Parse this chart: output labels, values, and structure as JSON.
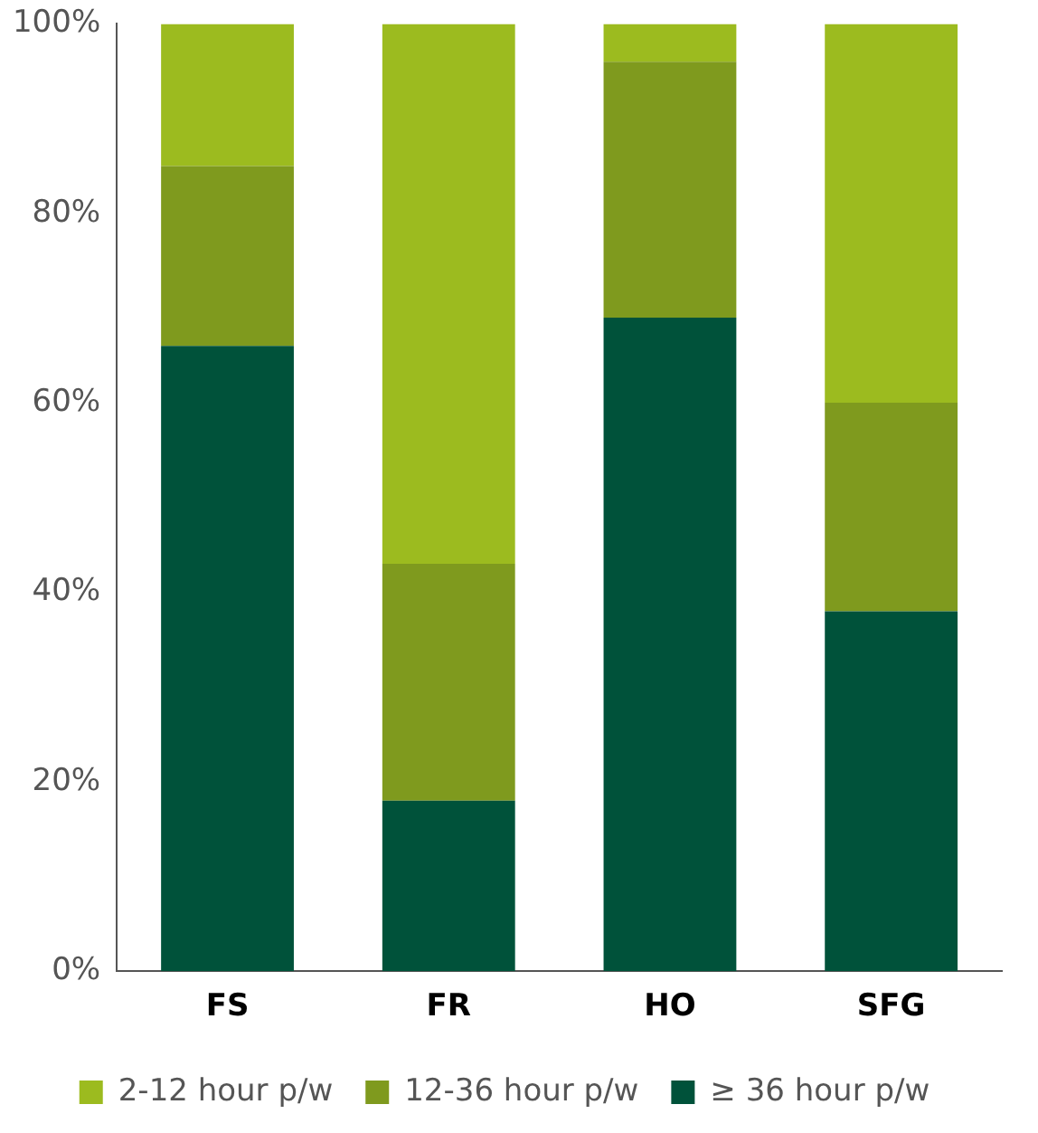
{
  "chart_data": {
    "type": "bar",
    "stacked": true,
    "categories": [
      "FS",
      "FR",
      "HO",
      "SFG"
    ],
    "series": [
      {
        "name": "≥ 36 hour p/w",
        "color": "#00523a",
        "values": [
          66,
          18,
          69,
          38
        ]
      },
      {
        "name": "12-36 hour p/w",
        "color": "#7f9a1e",
        "values": [
          19,
          25,
          27,
          22
        ]
      },
      {
        "name": "2-12 hour p/w",
        "color": "#9cbb1f",
        "values": [
          15,
          57,
          4,
          40
        ]
      }
    ],
    "ylim": [
      0,
      100
    ],
    "yticks": [
      {
        "value": 0,
        "label": "0%"
      },
      {
        "value": 20,
        "label": "20%"
      },
      {
        "value": 40,
        "label": "40%"
      },
      {
        "value": 60,
        "label": "60%"
      },
      {
        "value": 80,
        "label": "80%"
      },
      {
        "value": 100,
        "label": "100%"
      }
    ],
    "grid": false,
    "legend": "bottom"
  }
}
